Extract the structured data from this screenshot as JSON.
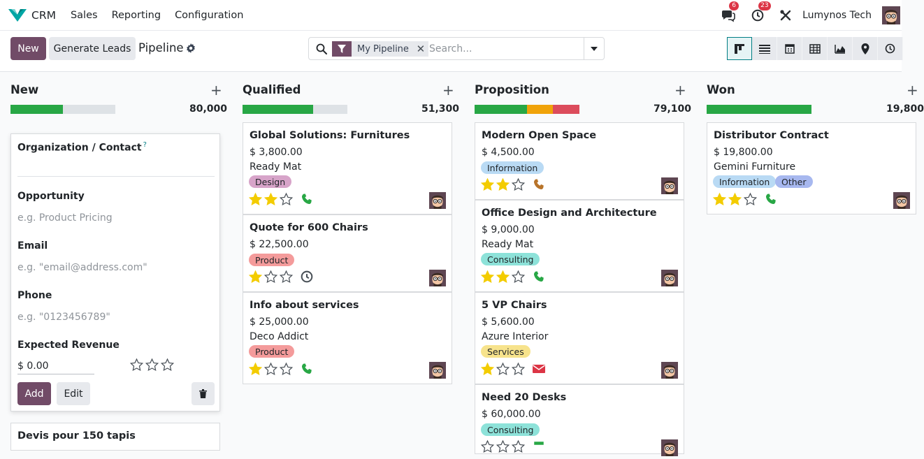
{
  "nav": {
    "app_name": "CRM",
    "menu": [
      "Sales",
      "Reporting",
      "Configuration"
    ],
    "messages_count": "6",
    "activities_count": "23",
    "company": "Lumynos Tech"
  },
  "control": {
    "new_label": "New",
    "generate_label": "Generate Leads",
    "page_title": "Pipeline",
    "facet_label": "My Pipeline",
    "search_placeholder": "Search..."
  },
  "colors": {
    "primary": "#714b67",
    "accent": "#017e84",
    "star_filled": "#f3cc00",
    "green_bar": "#28a745",
    "orange_bar": "#f0a30a",
    "red_bar": "#dc4c5c"
  },
  "columns": [
    {
      "title": "New",
      "total": "80,000",
      "progress": {
        "green": 0.5,
        "orange": 0,
        "red": 0
      }
    },
    {
      "title": "Qualified",
      "total": "51,300",
      "progress": {
        "green": 0.67,
        "orange": 0,
        "red": 0
      }
    },
    {
      "title": "Proposition",
      "total": "79,100",
      "progress": {
        "green": 0.5,
        "orange": 0.25,
        "red": 0.25
      }
    },
    {
      "title": "Won",
      "total": "19,800",
      "progress": {
        "green": 1,
        "orange": 0,
        "red": 0
      }
    }
  ],
  "quick_create": {
    "org_label": "Organization / Contact",
    "help_mark": "?",
    "opportunity_label": "Opportunity",
    "opportunity_placeholder": "e.g. Product Pricing",
    "email_label": "Email",
    "email_placeholder": "e.g. \"email@address.com\"",
    "phone_label": "Phone",
    "phone_placeholder": "e.g. \"0123456789\"",
    "revenue_label": "Expected Revenue",
    "revenue_value": "$ 0.00",
    "add_label": "Add",
    "edit_label": "Edit"
  },
  "new_extra_card": {
    "title": "Devis pour 150 tapis"
  },
  "qualified_cards": [
    {
      "title": "Global Solutions: Furnitures",
      "amount": "$ 3,800.00",
      "company": "Ready Mat",
      "tag": "Design",
      "stars": 2,
      "activity": "phone"
    },
    {
      "title": "Quote for 600 Chairs",
      "amount": "$ 22,500.00",
      "company": "",
      "tag": "Product",
      "stars": 1,
      "activity": "clock"
    },
    {
      "title": "Info about services",
      "amount": "$ 25,000.00",
      "company": "Deco Addict",
      "tag": "Product",
      "stars": 1,
      "activity": "phone"
    }
  ],
  "proposition_cards": [
    {
      "title": "Modern Open Space",
      "amount": "$ 4,500.00",
      "company": "",
      "tag": "Information",
      "stars": 2,
      "activity": "phone-orange"
    },
    {
      "title": "Office Design and Architecture",
      "amount": "$ 9,000.00",
      "company": "Ready Mat",
      "tag": "Consulting",
      "stars": 2,
      "activity": "phone"
    },
    {
      "title": "5 VP Chairs",
      "amount": "$ 5,600.00",
      "company": "Azure Interior",
      "tag": "Services",
      "stars": 1,
      "activity": "email-red"
    },
    {
      "title": "Need 20 Desks",
      "amount": "$ 60,000.00",
      "company": "",
      "tag": "Consulting",
      "stars": 0,
      "activity": "unknown"
    }
  ],
  "won_cards": [
    {
      "title": "Distributor Contract",
      "amount": "$ 19,800.00",
      "company": "Gemini Furniture",
      "tag": "Information",
      "tag2": "Other",
      "stars": 2,
      "activity": "phone"
    }
  ]
}
